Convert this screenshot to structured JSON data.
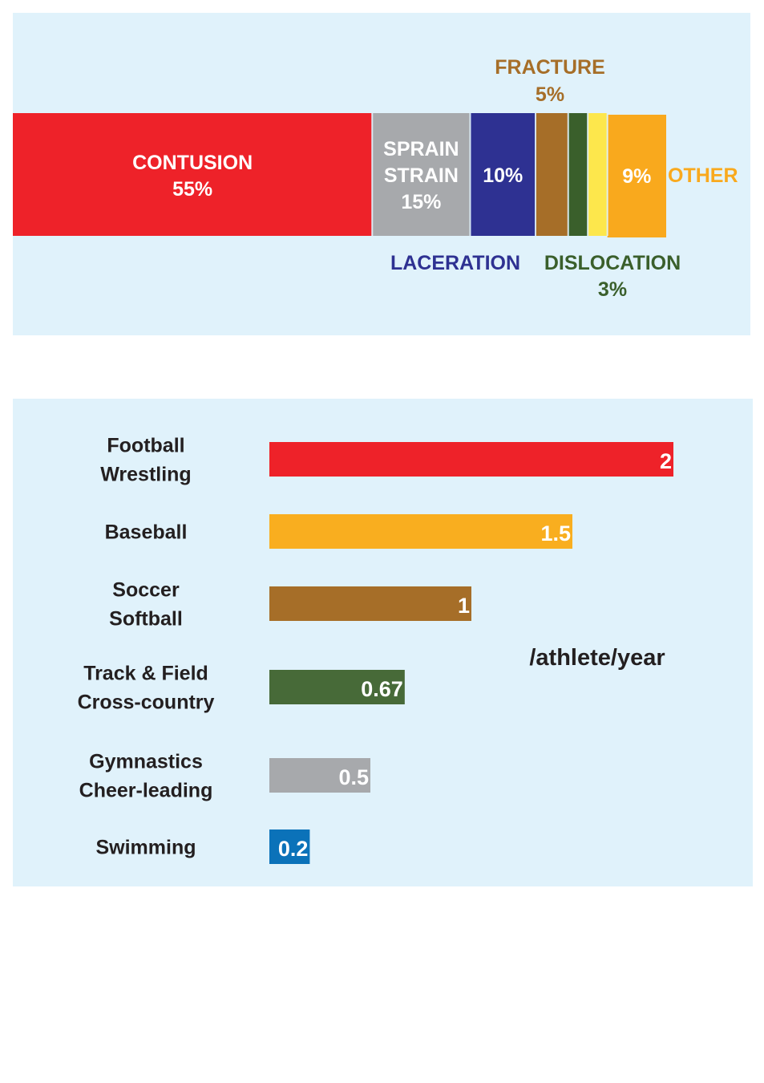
{
  "chart_data": [
    {
      "type": "bar",
      "subtype": "stacked-100-percent",
      "orientation": "horizontal",
      "segments": [
        {
          "name": "CONTUSION",
          "name_lines": [
            "CONTUSION"
          ],
          "value_label": "55%",
          "value": 55,
          "color": "#ee2229"
        },
        {
          "name": "SPRAIN STRAIN",
          "name_lines": [
            "SPRAIN",
            "STRAIN"
          ],
          "value_label": "15%",
          "value": 15,
          "color": "#a7a9ac"
        },
        {
          "name": "LACERATION",
          "name_lines": [
            "LACERATION"
          ],
          "value_label": "10%",
          "value": 10,
          "color": "#2e3192"
        },
        {
          "name": "FRACTURE",
          "name_lines": [
            "FRACTURE"
          ],
          "value_label": "5%",
          "value": 5,
          "color": "#a66e28"
        },
        {
          "name": "DISLOCATION",
          "name_lines": [
            "DISLOCATION"
          ],
          "value_label": "3%",
          "value": 3,
          "color": "#3a5f2b"
        },
        {
          "name": "",
          "name_lines": [],
          "value_label": "",
          "value": 3,
          "color": "#fde74c"
        },
        {
          "name": "OTHER",
          "name_lines": [
            "OTHER"
          ],
          "value_label": "9%",
          "value": 9,
          "color": "#f9a91d"
        }
      ]
    },
    {
      "type": "bar",
      "orientation": "horizontal",
      "unit_label": "/athlete/year",
      "categories": [
        {
          "lines": [
            "Football",
            "Wrestling"
          ],
          "value": 2,
          "value_label": "2",
          "color": "#ee2229"
        },
        {
          "lines": [
            "Baseball"
          ],
          "value": 1.5,
          "value_label": "1.5",
          "color": "#f9ae1f"
        },
        {
          "lines": [
            "Soccer",
            "Softball"
          ],
          "value": 1,
          "value_label": "1",
          "color": "#a66e28"
        },
        {
          "lines": [
            "Track & Field",
            "Cross-country"
          ],
          "value": 0.67,
          "value_label": "0.67",
          "color": "#476a38"
        },
        {
          "lines": [
            "Gymnastics",
            "Cheer-leading"
          ],
          "value": 0.5,
          "value_label": "0.5",
          "color": "#a7a9ac"
        },
        {
          "lines": [
            "Swimming"
          ],
          "value": 0.2,
          "value_label": "0.2",
          "color": "#0b72b9"
        }
      ]
    }
  ]
}
